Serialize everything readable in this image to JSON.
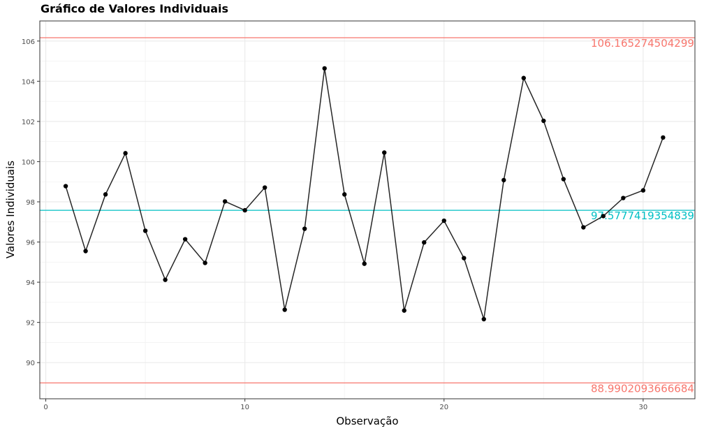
{
  "chart_data": {
    "type": "line",
    "title": "Gráfico de Valores Individuais",
    "xlabel": "Observação",
    "ylabel": "Valores Individuais",
    "xlim": [
      -0.3,
      32.6
    ],
    "ylim": [
      88.2,
      107.0
    ],
    "x_ticks": [
      0,
      10,
      20,
      30
    ],
    "y_ticks": [
      90,
      92,
      94,
      96,
      98,
      100,
      102,
      104,
      106
    ],
    "grid": true,
    "x": [
      1,
      2,
      3,
      4,
      5,
      6,
      7,
      8,
      9,
      10,
      11,
      12,
      13,
      14,
      15,
      16,
      17,
      18,
      19,
      20,
      21,
      22,
      23,
      24,
      25,
      26,
      27,
      28,
      29,
      30,
      31
    ],
    "values": [
      98.78,
      95.55,
      98.37,
      100.42,
      96.56,
      94.12,
      96.14,
      94.96,
      98.02,
      97.58,
      98.71,
      92.63,
      96.66,
      104.64,
      98.37,
      94.92,
      100.45,
      92.59,
      95.98,
      97.06,
      95.2,
      92.16,
      99.08,
      104.16,
      102.03,
      99.13,
      96.73,
      97.29,
      98.19,
      98.57,
      101.2
    ],
    "reference_lines": [
      {
        "value": 106.165274504299,
        "label": "106.165274504299",
        "color": "#F8766D"
      },
      {
        "value": 97.5777419354839,
        "label": "97.5777419354839",
        "color": "#00BFC4"
      },
      {
        "value": 88.9902093666684,
        "label": "88.9902093666684",
        "color": "#F8766D"
      }
    ],
    "line_color": "#000000"
  }
}
